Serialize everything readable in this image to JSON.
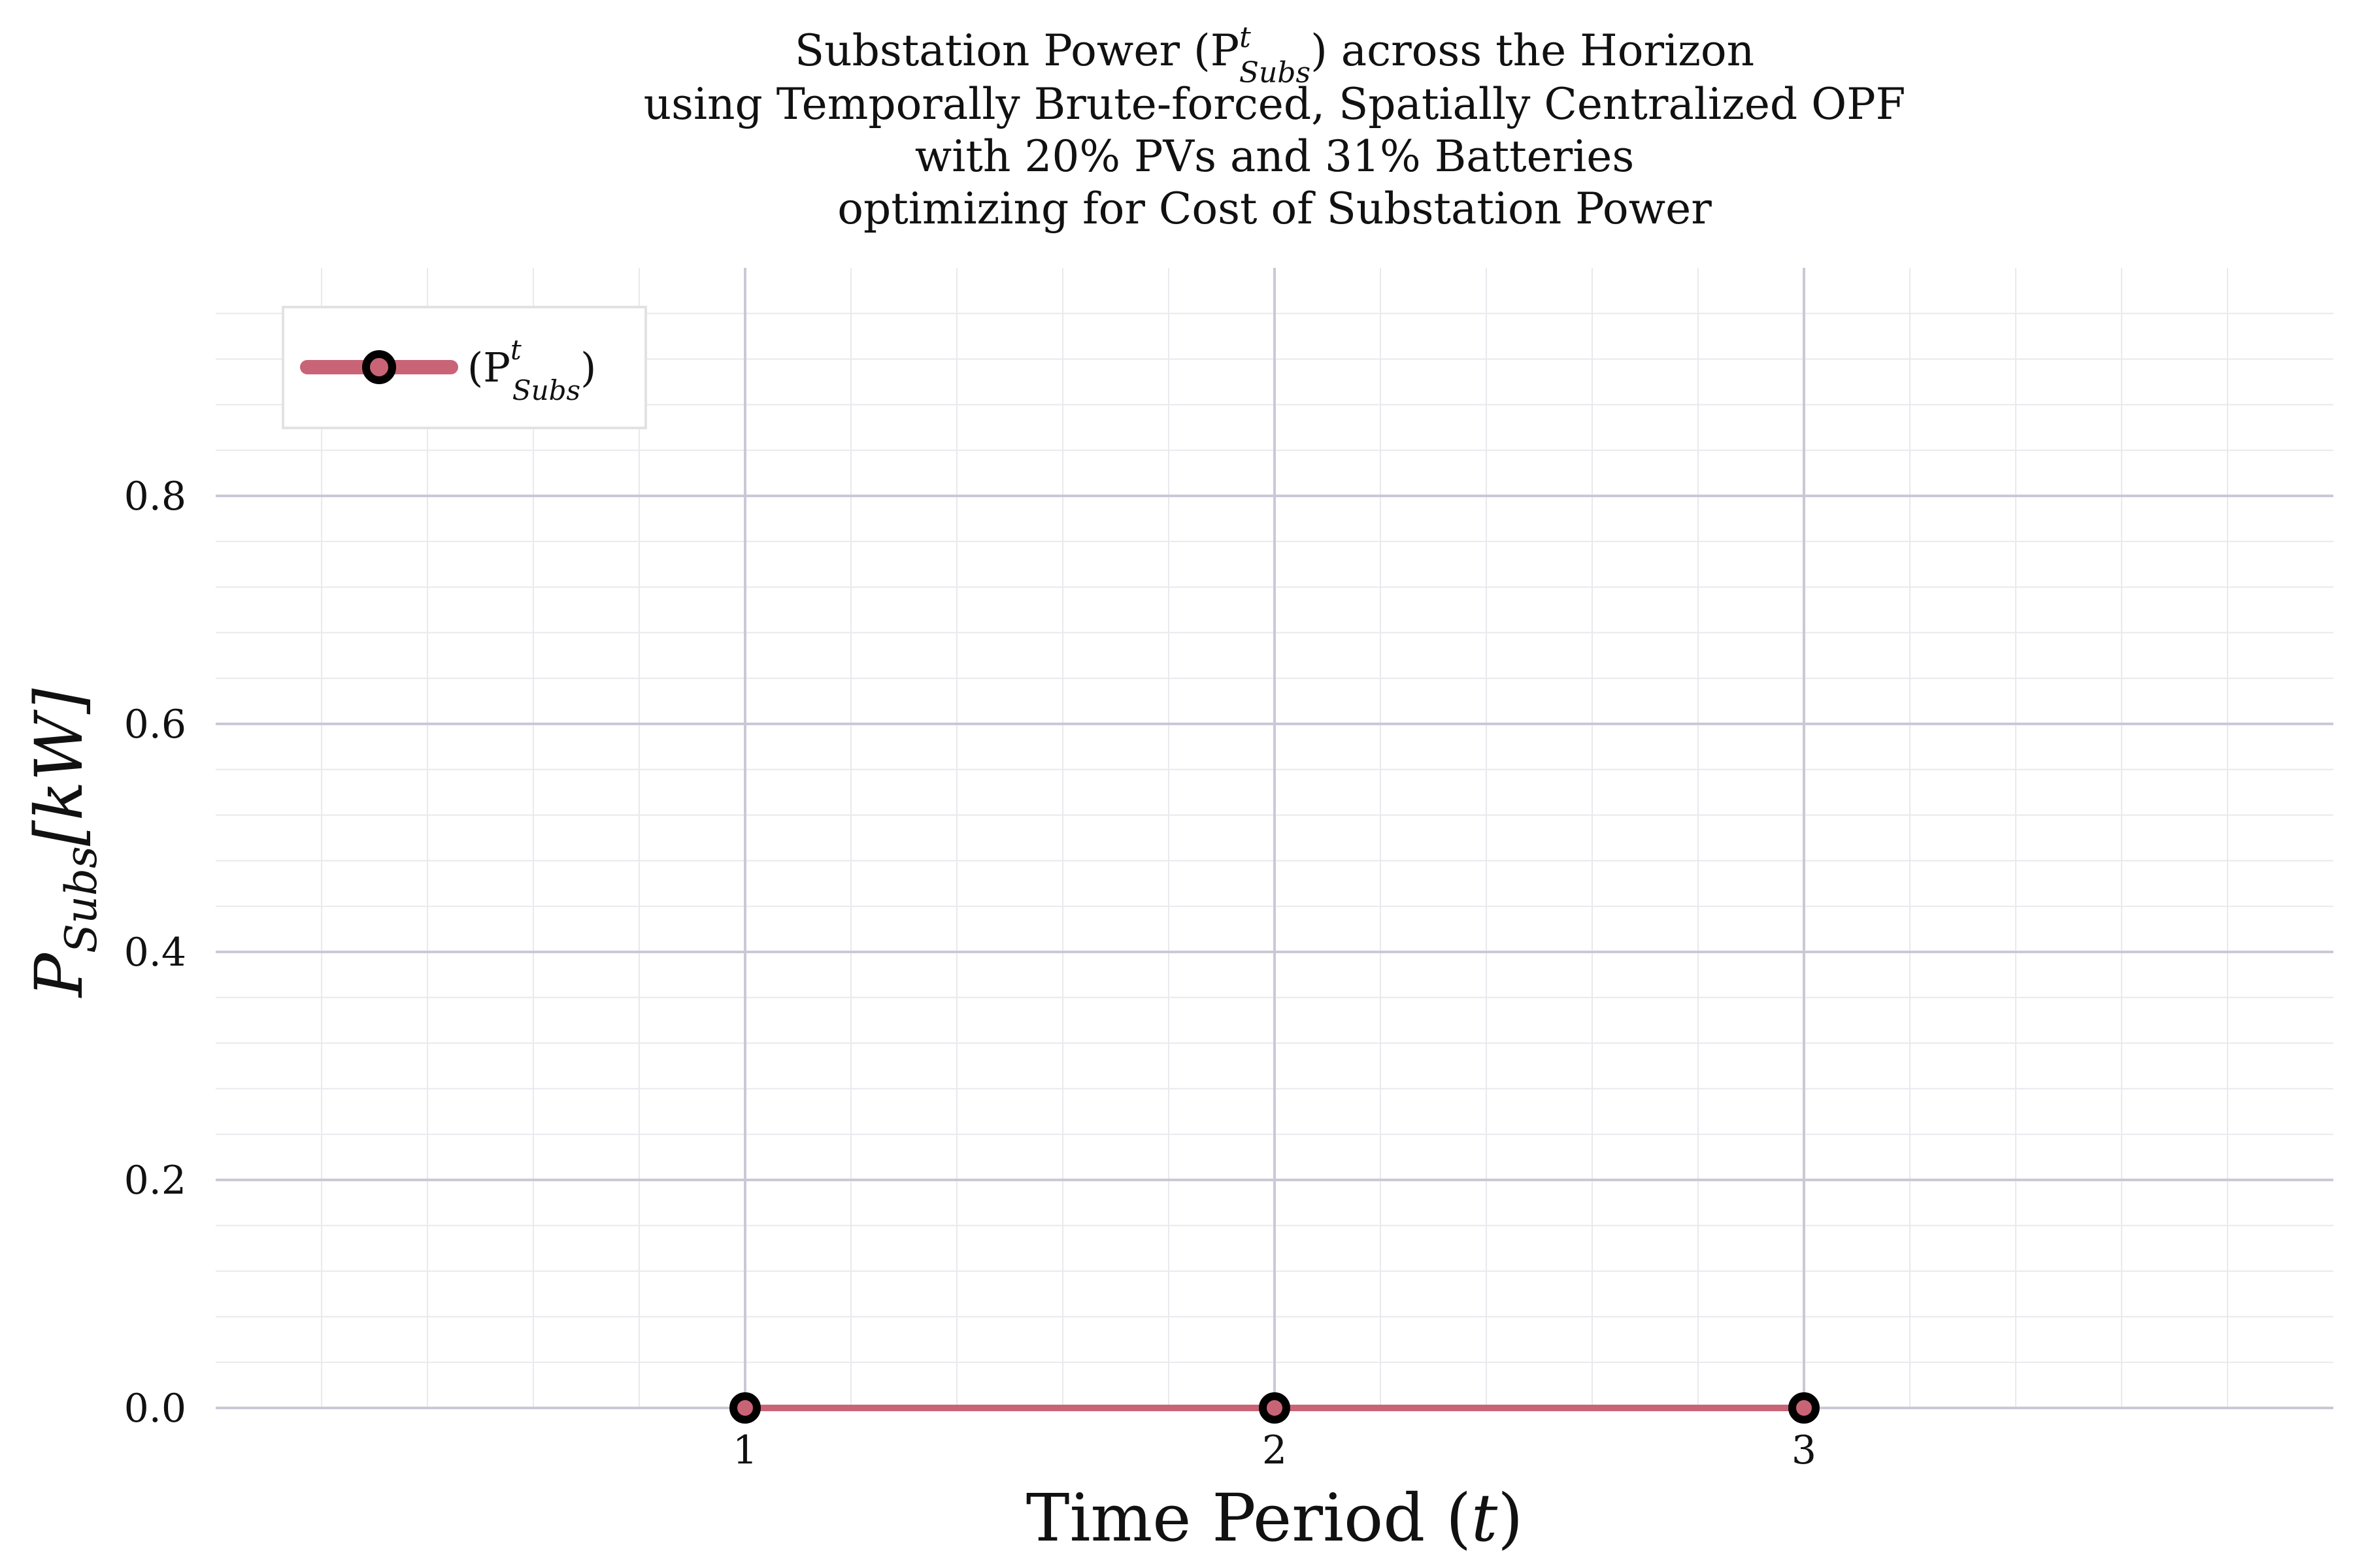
{
  "chart_data": {
    "type": "line",
    "title_lines": [
      "Substation Power (P",
      "using Temporally Brute-forced, Spatially Centralized OPF",
      "with 20% PVs and 31% Batteries",
      "optimizing for Cost of Substation Power"
    ],
    "title_math": {
      "superscript": "t",
      "subscript": "Subs",
      "suffix": ") across the Horizon"
    },
    "xlabel": {
      "prefix": "Time Period (",
      "var": "t",
      "suffix": ")"
    },
    "ylabel": {
      "base": "P",
      "subscript": "Subs",
      "unit": "[kW]"
    },
    "x_ticks": [
      1,
      2,
      3
    ],
    "y_ticks": [
      "0.0",
      "0.2",
      "0.4",
      "0.6",
      "0.8"
    ],
    "xlim": [
      0,
      4
    ],
    "ylim": [
      0,
      1
    ],
    "grid": true,
    "legend_position": "top-left",
    "series": [
      {
        "name": "(P",
        "name_math": {
          "superscript": "t",
          "subscript": "Subs",
          "suffix": ")"
        },
        "x": [
          1,
          2,
          3
        ],
        "y": [
          0,
          0,
          0
        ],
        "color": "#c96477",
        "marker_edge": "#000000"
      }
    ]
  }
}
